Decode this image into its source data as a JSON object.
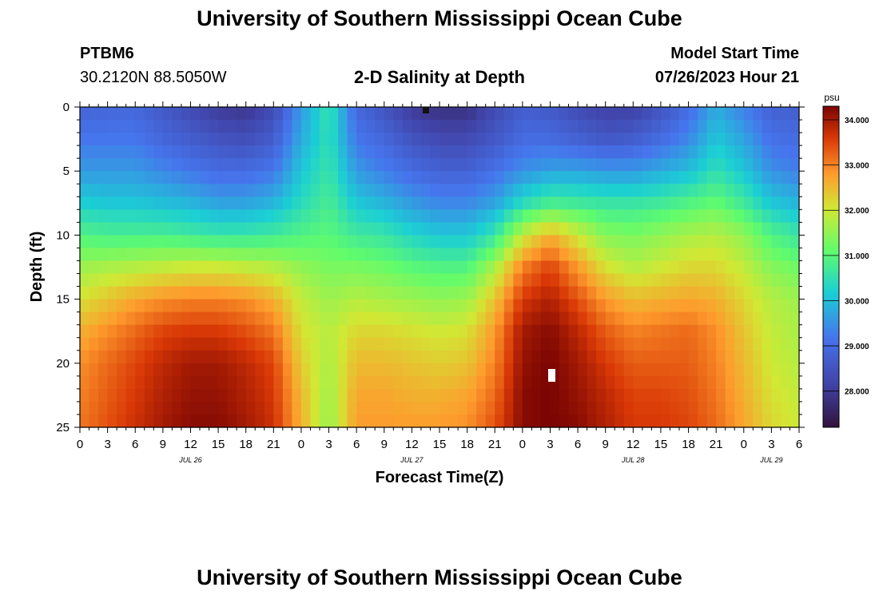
{
  "header": {
    "title": "University of Southern Mississippi Ocean Cube",
    "station": "PTBM6",
    "coordinates": "30.2120N  88.5050W",
    "subtitle": "2-D Salinity at Depth",
    "model_start_label": "Model Start Time",
    "model_start_value": "07/26/2023 Hour 21"
  },
  "footer": {
    "title": "University of Southern Mississippi Ocean Cube"
  },
  "chart_data": {
    "type": "heatmap",
    "title": "2-D Salinity at Depth",
    "xlabel": "Forecast Time(Z)",
    "ylabel": "Depth (ft)",
    "x_range_hours": [
      0,
      78
    ],
    "y_range_ft": [
      0,
      25
    ],
    "x_ticks": [
      {
        "hour": 0,
        "label": "0"
      },
      {
        "hour": 3,
        "label": "3"
      },
      {
        "hour": 6,
        "label": "6"
      },
      {
        "hour": 9,
        "label": "9"
      },
      {
        "hour": 12,
        "label": "12"
      },
      {
        "hour": 15,
        "label": "15"
      },
      {
        "hour": 18,
        "label": "18"
      },
      {
        "hour": 21,
        "label": "21"
      },
      {
        "hour": 24,
        "label": "0"
      },
      {
        "hour": 27,
        "label": "3"
      },
      {
        "hour": 30,
        "label": "6"
      },
      {
        "hour": 33,
        "label": "9"
      },
      {
        "hour": 36,
        "label": "12"
      },
      {
        "hour": 39,
        "label": "15"
      },
      {
        "hour": 42,
        "label": "18"
      },
      {
        "hour": 45,
        "label": "21"
      },
      {
        "hour": 48,
        "label": "0"
      },
      {
        "hour": 51,
        "label": "3"
      },
      {
        "hour": 54,
        "label": "6"
      },
      {
        "hour": 57,
        "label": "9"
      },
      {
        "hour": 60,
        "label": "12"
      },
      {
        "hour": 63,
        "label": "15"
      },
      {
        "hour": 66,
        "label": "18"
      },
      {
        "hour": 69,
        "label": "21"
      },
      {
        "hour": 72,
        "label": "0"
      },
      {
        "hour": 75,
        "label": "3"
      },
      {
        "hour": 78,
        "label": "6"
      }
    ],
    "date_labels": [
      {
        "hour": 12,
        "label": "JUL 26"
      },
      {
        "hour": 36,
        "label": "JUL 27"
      },
      {
        "hour": 60,
        "label": "JUL 28"
      },
      {
        "hour": 75,
        "label": "JUL 29"
      }
    ],
    "y_ticks": [
      0,
      5,
      10,
      15,
      20,
      25
    ],
    "colorbar": {
      "unit": "psu",
      "range": [
        27.2,
        34.3
      ],
      "ticks": [
        "28.000",
        "29.000",
        "30.000",
        "31.000",
        "32.000",
        "33.000",
        "34.000"
      ]
    },
    "salinity_psu": [
      [
        28.8,
        28.9,
        28.9,
        28.6,
        28.3,
        28.0,
        27.9,
        28.3,
        29.6,
        30.6,
        28.9,
        28.5,
        28.0,
        27.8,
        27.8,
        28.3,
        28.7,
        28.6,
        28.3,
        28.1,
        28.1,
        28.5,
        29.0,
        29.8,
        29.3,
        28.8,
        28.7
      ],
      [
        29.2,
        29.2,
        29.2,
        28.9,
        28.7,
        28.5,
        28.4,
        28.7,
        29.8,
        30.5,
        29.2,
        28.9,
        28.5,
        28.3,
        28.3,
        28.6,
        29.0,
        29.0,
        28.8,
        28.6,
        28.7,
        29.0,
        29.4,
        30.1,
        29.7,
        29.1,
        29.0
      ],
      [
        29.6,
        29.6,
        29.6,
        29.4,
        29.2,
        29.0,
        29.0,
        29.2,
        30.1,
        30.6,
        29.6,
        29.3,
        29.0,
        28.8,
        28.8,
        29.1,
        29.5,
        29.7,
        29.7,
        29.6,
        29.6,
        29.8,
        30.0,
        30.5,
        30.1,
        29.5,
        29.3
      ],
      [
        30.2,
        30.1,
        30.1,
        30.0,
        29.9,
        29.7,
        29.7,
        29.9,
        30.4,
        30.8,
        30.1,
        29.9,
        29.6,
        29.4,
        29.4,
        29.7,
        30.4,
        30.8,
        30.7,
        30.6,
        30.6,
        30.7,
        30.9,
        31.1,
        30.7,
        30.1,
        29.9
      ],
      [
        30.9,
        30.8,
        30.8,
        30.8,
        30.7,
        30.6,
        30.6,
        30.7,
        30.9,
        31.0,
        30.7,
        30.6,
        30.3,
        30.1,
        30.1,
        30.6,
        31.9,
        32.6,
        32.0,
        31.4,
        31.3,
        31.5,
        31.7,
        31.8,
        31.5,
        30.9,
        30.6
      ],
      [
        31.6,
        31.7,
        31.8,
        31.9,
        32.0,
        32.0,
        31.9,
        31.8,
        31.5,
        31.3,
        31.3,
        31.2,
        31.0,
        30.9,
        30.9,
        31.7,
        33.0,
        33.5,
        32.8,
        32.1,
        31.8,
        32.0,
        32.2,
        32.2,
        31.9,
        31.4,
        31.2
      ],
      [
        32.1,
        32.4,
        32.7,
        32.9,
        33.0,
        33.0,
        32.9,
        32.6,
        31.9,
        31.6,
        31.8,
        31.7,
        31.6,
        31.5,
        31.6,
        32.4,
        33.6,
        33.9,
        33.4,
        32.8,
        32.5,
        32.6,
        32.7,
        32.6,
        32.2,
        31.8,
        31.6
      ],
      [
        32.6,
        32.9,
        33.2,
        33.5,
        33.6,
        33.6,
        33.4,
        33.1,
        32.1,
        31.8,
        32.2,
        32.2,
        32.1,
        32.0,
        32.1,
        32.8,
        34.0,
        34.2,
        33.8,
        33.3,
        33.0,
        33.1,
        33.2,
        32.9,
        32.4,
        31.9,
        31.7
      ],
      [
        32.9,
        33.2,
        33.5,
        33.8,
        34.0,
        34.0,
        33.8,
        33.5,
        32.3,
        31.7,
        32.5,
        32.5,
        32.4,
        32.3,
        32.4,
        33.0,
        34.1,
        34.3,
        34.0,
        33.6,
        33.3,
        33.3,
        33.3,
        33.0,
        32.5,
        32.0,
        31.8
      ],
      [
        33.0,
        33.3,
        33.6,
        33.9,
        34.1,
        34.1,
        33.9,
        33.6,
        32.5,
        31.6,
        32.7,
        32.7,
        32.6,
        32.6,
        32.7,
        33.2,
        34.2,
        34.3,
        34.1,
        33.8,
        33.5,
        33.5,
        33.4,
        33.1,
        32.6,
        32.1,
        31.9
      ],
      [
        33.1,
        33.4,
        33.7,
        34.0,
        34.2,
        34.2,
        34.0,
        33.7,
        32.6,
        31.5,
        32.8,
        32.8,
        32.8,
        32.8,
        32.9,
        33.4,
        34.2,
        34.3,
        34.2,
        33.9,
        33.6,
        33.6,
        33.5,
        33.2,
        32.7,
        32.2,
        32.0
      ]
    ]
  }
}
